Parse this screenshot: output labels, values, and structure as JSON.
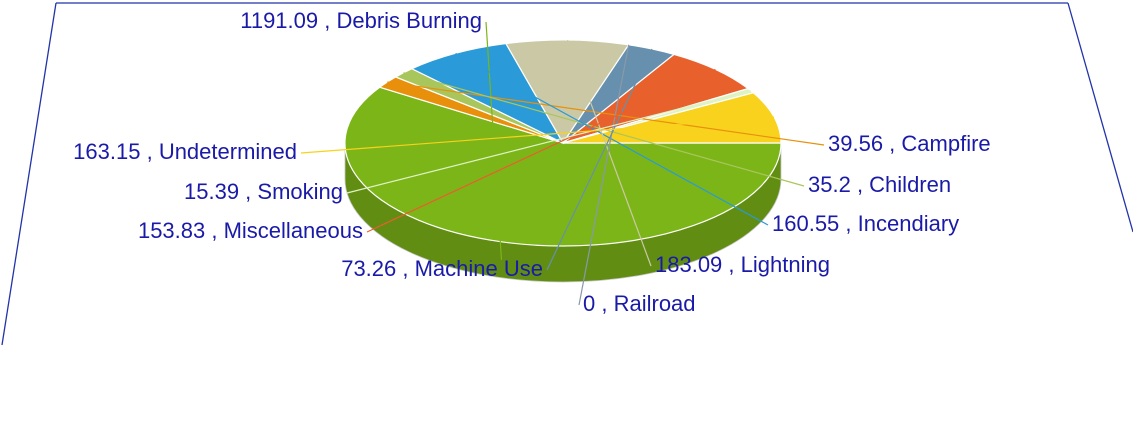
{
  "chart_data": {
    "type": "pie",
    "categories": [
      "Debris Burning",
      "Campfire",
      "Children",
      "Incendiary",
      "Lightning",
      "Railroad",
      "Machine Use",
      "Miscellaneous",
      "Smoking",
      "Undetermined"
    ],
    "values": [
      1191.09,
      39.56,
      35.2,
      160.55,
      183.09,
      0,
      73.26,
      153.83,
      15.39,
      163.15
    ],
    "colors": [
      "#7cb518",
      "#e8900c",
      "#a9c65c",
      "#2a9ad8",
      "#cbc9a5",
      "#8899aa",
      "#6690ad",
      "#e8602c",
      "#dff2c4",
      "#f8d21c"
    ],
    "label_separator": " , "
  }
}
